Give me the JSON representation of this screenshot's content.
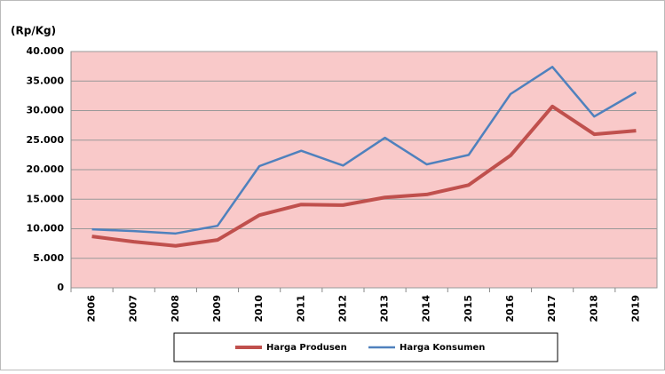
{
  "chart_data": {
    "type": "line",
    "y_label": "(Rp/Kg)",
    "categories": [
      "2006",
      "2007",
      "2008",
      "2009",
      "2010",
      "2011",
      "2012",
      "2013",
      "2014",
      "2015",
      "2016",
      "2017",
      "2018",
      "2019"
    ],
    "series": [
      {
        "name": "Harga Produsen",
        "color": "#c0504d",
        "values": [
          8700,
          7800,
          7100,
          8100,
          12300,
          14100,
          14000,
          15300,
          15800,
          17400,
          22400,
          30700,
          26000,
          26600
        ]
      },
      {
        "name": "Harga Konsumen",
        "color": "#4f81bd",
        "values": [
          9900,
          9600,
          9200,
          10500,
          20600,
          23200,
          20700,
          25400,
          20900,
          22500,
          32800,
          37400,
          29000,
          33100
        ]
      }
    ],
    "ylim": [
      0,
      40000
    ],
    "yticks": [
      0,
      {
        "value": 5000,
        "label": "5.000"
      },
      {
        "value": 10000,
        "label": "10.000"
      },
      {
        "value": 15000,
        "label": "15.000"
      },
      {
        "value": 20000,
        "label": "20.000"
      },
      {
        "value": 25000,
        "label": "25.000"
      },
      {
        "value": 30000,
        "label": "30.000"
      },
      {
        "value": 35000,
        "label": "35.000"
      },
      {
        "value": 40000,
        "label": "40.000"
      }
    ],
    "grid": true,
    "plot_background": "#f9c9c9"
  }
}
